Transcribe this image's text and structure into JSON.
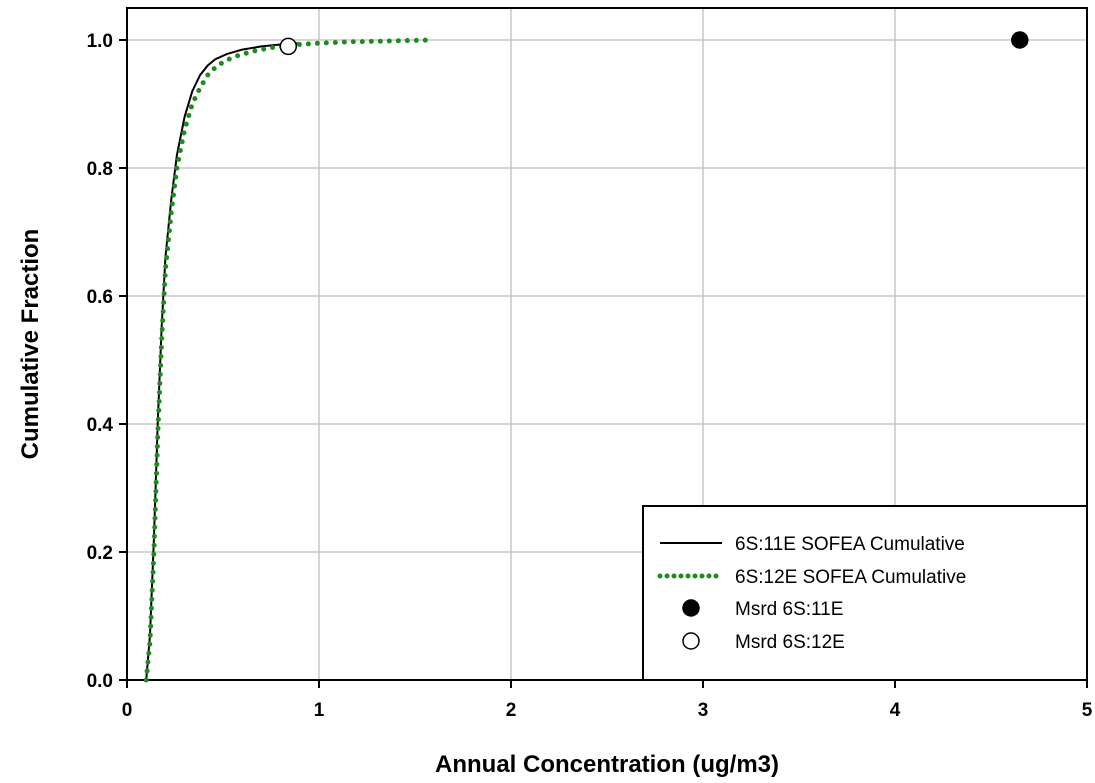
{
  "chart_data": {
    "type": "line",
    "title": "",
    "xlabel": "Annual Concentration (ug/m3)",
    "ylabel": "Cumulative Fraction",
    "xlim": [
      0,
      5
    ],
    "ylim": [
      0,
      1.05
    ],
    "x_ticks": [
      0,
      1,
      2,
      3,
      4,
      5
    ],
    "x_tick_labels": [
      "0",
      "1",
      "2",
      "3",
      "4",
      "5"
    ],
    "y_ticks": [
      0,
      0.2,
      0.4,
      0.6,
      0.8,
      1.0
    ],
    "y_tick_labels": [
      "0.0",
      "0.2",
      "0.4",
      "0.6",
      "0.8",
      "1.0"
    ],
    "grid": true,
    "legend_position": "bottom-right",
    "series": [
      {
        "name": "6S:11E SOFEA Cumulative",
        "style": "solid",
        "color": "#000000",
        "x": [
          0.1,
          0.12,
          0.14,
          0.16,
          0.18,
          0.2,
          0.23,
          0.26,
          0.3,
          0.34,
          0.38,
          0.42,
          0.46,
          0.52,
          0.6,
          0.7,
          0.8,
          0.9
        ],
        "y": [
          0.0,
          0.07,
          0.22,
          0.4,
          0.55,
          0.66,
          0.75,
          0.82,
          0.88,
          0.92,
          0.945,
          0.96,
          0.97,
          0.978,
          0.985,
          0.99,
          0.993,
          0.995
        ]
      },
      {
        "name": "6S:12E SOFEA Cumulative",
        "style": "dotted",
        "color": "#1f8a1f",
        "x": [
          0.1,
          0.12,
          0.14,
          0.16,
          0.18,
          0.2,
          0.23,
          0.26,
          0.3,
          0.34,
          0.38,
          0.42,
          0.47,
          0.55,
          0.65,
          0.75,
          0.85,
          1.0,
          1.15,
          1.3,
          1.45,
          1.6
        ],
        "y": [
          0.0,
          0.06,
          0.2,
          0.38,
          0.53,
          0.64,
          0.73,
          0.8,
          0.86,
          0.9,
          0.925,
          0.945,
          0.96,
          0.973,
          0.982,
          0.988,
          0.992,
          0.995,
          0.997,
          0.998,
          0.999,
          1.0
        ]
      }
    ],
    "points": [
      {
        "name": "Msrd 6S:11E",
        "x": 4.65,
        "y": 1.0,
        "fill": "#000000"
      },
      {
        "name": "Msrd 6S:12E",
        "x": 0.84,
        "y": 0.99,
        "fill": "#ffffff"
      }
    ]
  }
}
